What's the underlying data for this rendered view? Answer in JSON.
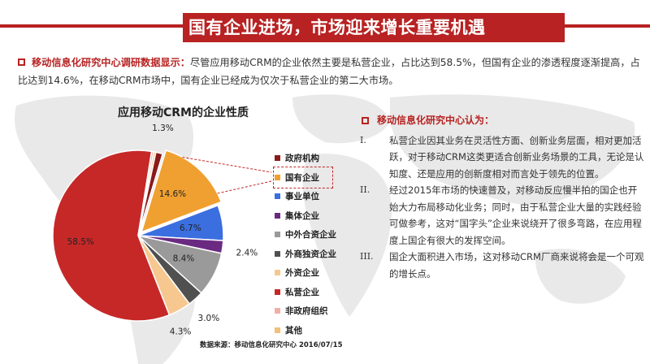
{
  "header": {
    "title": "国有企业进场，市场迎来增长重要机遇"
  },
  "intro": {
    "source": "移动信息化研究中心调研数据显示：",
    "text": "尽管应用移动CRM的企业依然主要是私营企业，占比达到58.5%，但国有企业的渗透程度逐渐提高，占比达到14.6%，在移动CRM市场中，国有企业已经成为仅次于私营企业的第二大市场。"
  },
  "chart_data": {
    "type": "pie",
    "title": "应用移动CRM的企业性质",
    "legend_position": "right",
    "slices": [
      {
        "name": "政府机构",
        "value": 1.3,
        "label": "1.3%",
        "color": "#8b1a1a"
      },
      {
        "name": "国有企业",
        "value": 14.6,
        "label": "14.6%",
        "color": "#f0a030"
      },
      {
        "name": "事业单位",
        "value": 6.7,
        "label": "6.7%",
        "color": "#3b6fe0"
      },
      {
        "name": "集体企业",
        "value": 2.4,
        "label": "2.4%",
        "color": "#6b2a82"
      },
      {
        "name": "中外合资企业",
        "value": 8.4,
        "label": "8.4%",
        "color": "#9a9a9a"
      },
      {
        "name": "外商独资企业",
        "value": 3.0,
        "label": "3.0%",
        "color": "#505050"
      },
      {
        "name": "外资企业",
        "value": 4.3,
        "label": "4.3%",
        "color": "#f6c890"
      },
      {
        "name": "私营企业",
        "value": 58.5,
        "label": "58.5%",
        "color": "#c62828"
      },
      {
        "name": "非政府组织",
        "value": 0.4,
        "label": "",
        "color": "#f0b0a8"
      },
      {
        "name": "其他",
        "value": 0.4,
        "label": "",
        "color": "#f2c078"
      }
    ],
    "highlighted": "国有企业"
  },
  "source": "数据来源：移动信息化研究中心 2016/07/15",
  "panel": {
    "heading": "移动信息化研究中心认为：",
    "points": [
      {
        "num": "I.",
        "text": "私营企业因其业务在灵活性方面、创新业务层面，相对更加活跃，对于移动CRM这类更适合创新业务场景的工具，无论是认知度、还是应用的创新度相对而言处于领先的位置。"
      },
      {
        "num": "II.",
        "text": "经过2015年市场的快速普及，对移动反应慢半拍的国企也开始大力布局移动化业务；同时，由于私营企业大量的实践经验可做参考，这对“国字头”企业来说绕开了很多弯路，在应用程度上国企有很大的发挥空间。"
      },
      {
        "num": "III.",
        "text": "国企大面积进入市场，这对移动CRM厂商来说将会是一个可观的增长点。"
      }
    ]
  }
}
